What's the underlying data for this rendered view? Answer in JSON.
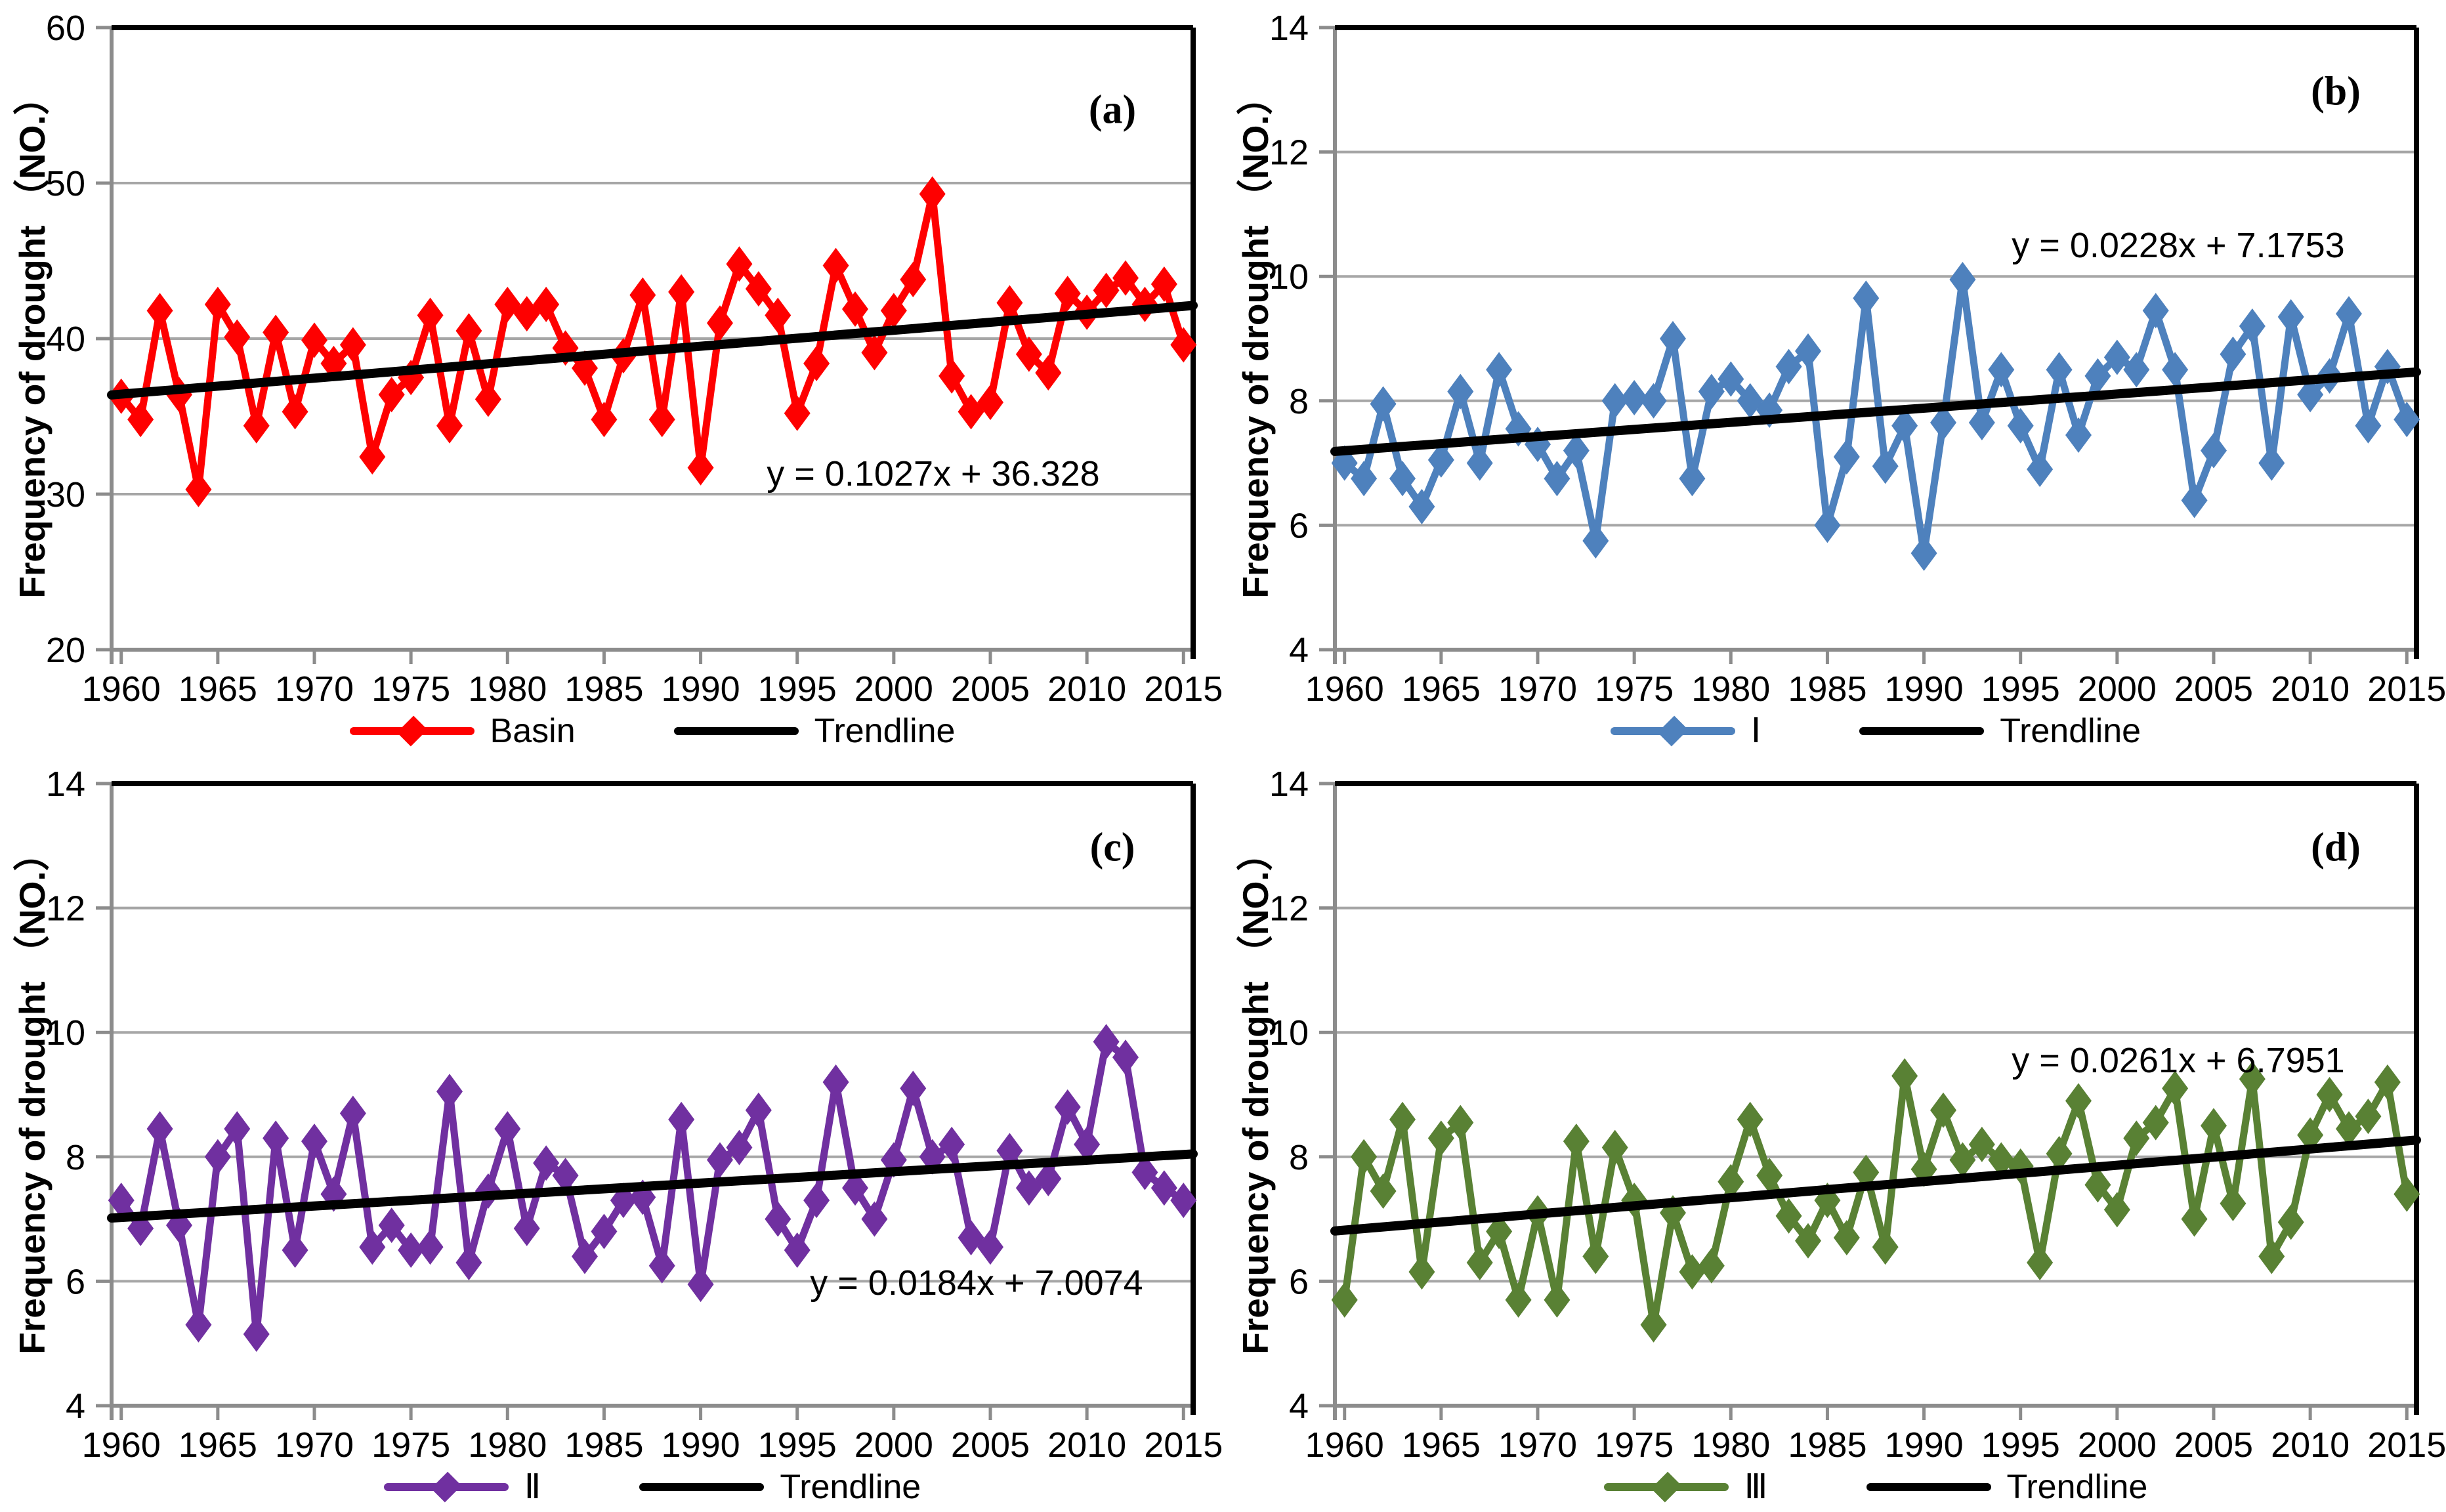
{
  "page": {
    "background": "#FFFFFF"
  },
  "chart_data": [
    {
      "id": "a",
      "type": "line",
      "panel_label": "(a)",
      "ylabel": "Frequency of drought （NO.）",
      "x": [
        1960,
        1961,
        1962,
        1963,
        1964,
        1965,
        1966,
        1967,
        1968,
        1969,
        1970,
        1971,
        1972,
        1973,
        1974,
        1975,
        1976,
        1977,
        1978,
        1979,
        1980,
        1981,
        1982,
        1983,
        1984,
        1985,
        1986,
        1987,
        1988,
        1989,
        1990,
        1991,
        1992,
        1993,
        1994,
        1995,
        1996,
        1997,
        1998,
        1999,
        2000,
        2001,
        2002,
        2003,
        2004,
        2005,
        2006,
        2007,
        2008,
        2009,
        2010,
        2011,
        2012,
        2013,
        2014,
        2015
      ],
      "xticks": [
        1960,
        1965,
        1970,
        1975,
        1980,
        1985,
        1990,
        1995,
        2000,
        2005,
        2010,
        2015
      ],
      "ylim": [
        20,
        60
      ],
      "yticks": [
        20,
        30,
        40,
        50,
        60
      ],
      "grid": true,
      "legend_position": "bottom",
      "series": [
        {
          "name": "Basin",
          "color": "#FE0000",
          "marker": "diamond",
          "values": [
            36.3,
            34.8,
            41.8,
            36.4,
            30.3,
            42.2,
            40.1,
            34.4,
            40.4,
            35.3,
            39.9,
            38.4,
            39.6,
            32.4,
            36.4,
            37.5,
            41.5,
            34.4,
            40.5,
            36.1,
            42.2,
            41.6,
            42.2,
            39.4,
            38.1,
            34.8,
            38.9,
            42.8,
            34.8,
            43.0,
            31.7,
            41.0,
            44.8,
            43.2,
            41.5,
            35.2,
            38.4,
            44.7,
            41.9,
            39.1,
            41.8,
            43.8,
            49.3,
            37.6,
            35.3,
            35.9,
            42.3,
            39.0,
            37.8,
            42.9,
            41.7,
            43.1,
            43.9,
            42.2,
            43.5,
            39.6
          ]
        }
      ],
      "trendline": {
        "label": "Trendline",
        "color": "#000000",
        "slope": 0.1027,
        "intercept": 36.328
      },
      "equation": "y = 0.1027x + 36.328"
    },
    {
      "id": "b",
      "type": "line",
      "panel_label": "(b)",
      "ylabel": "Frequency of drought （NO.）",
      "x": [
        1960,
        1961,
        1962,
        1963,
        1964,
        1965,
        1966,
        1967,
        1968,
        1969,
        1970,
        1971,
        1972,
        1973,
        1974,
        1975,
        1976,
        1977,
        1978,
        1979,
        1980,
        1981,
        1982,
        1983,
        1984,
        1985,
        1986,
        1987,
        1988,
        1989,
        1990,
        1991,
        1992,
        1993,
        1994,
        1995,
        1996,
        1997,
        1998,
        1999,
        2000,
        2001,
        2002,
        2003,
        2004,
        2005,
        2006,
        2007,
        2008,
        2009,
        2010,
        2011,
        2012,
        2013,
        2014,
        2015
      ],
      "xticks": [
        1960,
        1965,
        1970,
        1975,
        1980,
        1985,
        1990,
        1995,
        2000,
        2005,
        2010,
        2015
      ],
      "ylim": [
        4,
        14
      ],
      "yticks": [
        4,
        6,
        8,
        10,
        12,
        14
      ],
      "grid": true,
      "legend_position": "bottom",
      "series": [
        {
          "name": "Ⅰ",
          "color": "#4E81BD",
          "marker": "diamond",
          "values": [
            7.0,
            6.75,
            7.95,
            6.75,
            6.3,
            7.05,
            8.15,
            7.0,
            8.5,
            7.55,
            7.3,
            6.75,
            7.2,
            5.75,
            8.0,
            8.05,
            8.0,
            9.0,
            6.75,
            8.15,
            8.35,
            8.0,
            7.85,
            8.55,
            8.8,
            6.0,
            7.1,
            9.65,
            6.95,
            7.6,
            5.55,
            7.65,
            9.95,
            7.65,
            8.5,
            7.6,
            6.9,
            8.5,
            7.45,
            8.4,
            8.7,
            8.5,
            9.45,
            8.5,
            6.4,
            7.2,
            8.75,
            9.2,
            7.0,
            9.35,
            8.1,
            8.4,
            9.4,
            7.6,
            8.55,
            7.7
          ]
        }
      ],
      "trendline": {
        "label": "Trendline",
        "color": "#000000",
        "slope": 0.0228,
        "intercept": 7.1753
      },
      "equation": "y = 0.0228x + 7.1753"
    },
    {
      "id": "c",
      "type": "line",
      "panel_label": "(c)",
      "ylabel": "Frequency of drought （NO.）",
      "x": [
        1960,
        1961,
        1962,
        1963,
        1964,
        1965,
        1966,
        1967,
        1968,
        1969,
        1970,
        1971,
        1972,
        1973,
        1974,
        1975,
        1976,
        1977,
        1978,
        1979,
        1980,
        1981,
        1982,
        1983,
        1984,
        1985,
        1986,
        1987,
        1988,
        1989,
        1990,
        1991,
        1992,
        1993,
        1994,
        1995,
        1996,
        1997,
        1998,
        1999,
        2000,
        2001,
        2002,
        2003,
        2004,
        2005,
        2006,
        2007,
        2008,
        2009,
        2010,
        2011,
        2012,
        2013,
        2014,
        2015
      ],
      "xticks": [
        1960,
        1965,
        1970,
        1975,
        1980,
        1985,
        1990,
        1995,
        2000,
        2005,
        2010,
        2015
      ],
      "ylim": [
        4,
        14
      ],
      "yticks": [
        4,
        6,
        8,
        10,
        12,
        14
      ],
      "grid": true,
      "legend_position": "bottom",
      "series": [
        {
          "name": "Ⅱ",
          "color": "#7030A0",
          "marker": "diamond",
          "values": [
            7.3,
            6.85,
            8.45,
            6.9,
            5.3,
            8.0,
            8.45,
            5.15,
            8.3,
            6.5,
            8.25,
            7.4,
            8.7,
            6.55,
            6.9,
            6.5,
            6.55,
            9.05,
            6.3,
            7.45,
            8.45,
            6.85,
            7.9,
            7.7,
            6.4,
            6.8,
            7.3,
            7.35,
            6.25,
            8.6,
            5.95,
            7.95,
            8.15,
            8.75,
            7.0,
            6.5,
            7.3,
            9.2,
            7.5,
            7.0,
            7.95,
            9.1,
            8.0,
            8.2,
            6.7,
            6.55,
            8.1,
            7.5,
            7.65,
            8.8,
            8.2,
            9.85,
            9.6,
            7.75,
            7.5,
            7.3
          ]
        }
      ],
      "trendline": {
        "label": "Trendline",
        "color": "#000000",
        "slope": 0.0184,
        "intercept": 7.0074
      },
      "equation": "y = 0.0184x + 7.0074"
    },
    {
      "id": "d",
      "type": "line",
      "panel_label": "(d)",
      "ylabel": "Frequency of drought （NO.）",
      "x": [
        1960,
        1961,
        1962,
        1963,
        1964,
        1965,
        1966,
        1967,
        1968,
        1969,
        1970,
        1971,
        1972,
        1973,
        1974,
        1975,
        1976,
        1977,
        1978,
        1979,
        1980,
        1981,
        1982,
        1983,
        1984,
        1985,
        1986,
        1987,
        1988,
        1989,
        1990,
        1991,
        1992,
        1993,
        1994,
        1995,
        1996,
        1997,
        1998,
        1999,
        2000,
        2001,
        2002,
        2003,
        2004,
        2005,
        2006,
        2007,
        2008,
        2009,
        2010,
        2011,
        2012,
        2013,
        2014,
        2015
      ],
      "xticks": [
        1960,
        1965,
        1970,
        1975,
        1980,
        1985,
        1990,
        1995,
        2000,
        2005,
        2010,
        2015
      ],
      "ylim": [
        4,
        14
      ],
      "yticks": [
        4,
        6,
        8,
        10,
        12,
        14
      ],
      "grid": true,
      "legend_position": "bottom",
      "series": [
        {
          "name": "Ⅲ",
          "color": "#598134",
          "marker": "diamond",
          "values": [
            5.7,
            8.0,
            7.45,
            8.6,
            6.15,
            8.3,
            8.55,
            6.3,
            6.8,
            5.7,
            7.1,
            5.7,
            8.25,
            6.4,
            8.15,
            7.3,
            5.3,
            7.1,
            6.15,
            6.25,
            7.6,
            8.6,
            7.7,
            7.05,
            6.65,
            7.3,
            6.7,
            7.75,
            6.55,
            9.3,
            7.8,
            8.75,
            7.95,
            8.2,
            7.95,
            7.85,
            6.3,
            8.05,
            8.9,
            7.55,
            7.15,
            8.3,
            8.55,
            9.1,
            7.0,
            8.5,
            7.25,
            9.25,
            6.4,
            6.95,
            8.35,
            9.0,
            8.45,
            8.65,
            9.2,
            7.4
          ]
        }
      ],
      "trendline": {
        "label": "Trendline",
        "color": "#000000",
        "slope": 0.0261,
        "intercept": 6.7951
      },
      "equation": "y = 0.0261x + 6.7951"
    }
  ],
  "style": {
    "gridline_color": "#A6A6A6",
    "axis_color": "#8C8C8C",
    "border_color": "#000000",
    "text_color": "#000000"
  }
}
